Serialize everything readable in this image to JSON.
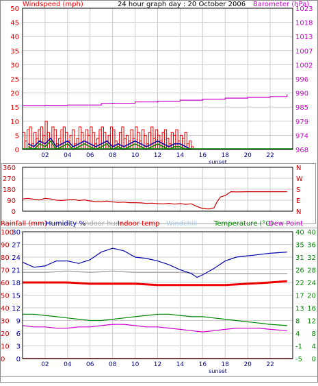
{
  "colors": {
    "wind": "#ee0000",
    "wind_avg": "#0000aa",
    "wind_gust": "#008800",
    "baro": "#cc00cc",
    "dir": "#cc0000",
    "grid": "#cccccc",
    "frame": "#000000",
    "rain": "#cc0000",
    "humidity": "#0000aa",
    "indoor_hum": "#aaaaaa",
    "indoor_temp": "#ee0000",
    "windchill": "#aaccee",
    "temperature": "#008800",
    "dewpoint": "#cc00cc"
  },
  "chart_data": [
    {
      "type": "line",
      "title": "24 hour graph day : 20 October 2006",
      "ylabel": "Windspeed (mph)",
      "y2label": "Barometer (hPa)",
      "x_ticks": [
        "02",
        "04",
        "06",
        "08",
        "10",
        "12",
        "14",
        "16",
        "18",
        "20",
        "22"
      ],
      "x_marker": "sunset",
      "sunset_hour": 17.35,
      "xlim": [
        0,
        24
      ],
      "ylim": [
        0,
        50
      ],
      "y_ticks": [
        0,
        5,
        10,
        15,
        20,
        25,
        30,
        35,
        40,
        45,
        50
      ],
      "y2_ticks": [
        968,
        974,
        979,
        985,
        990,
        996,
        1002,
        1007,
        1013,
        1018,
        1023
      ],
      "grid": true,
      "series": [
        {
          "name": "Windspeed",
          "key": "wind_gust_bars",
          "x": [
            0.1,
            0.3,
            0.5,
            0.7,
            0.9,
            1.1,
            1.3,
            1.5,
            1.7,
            1.9,
            2.1,
            2.3,
            2.5,
            2.7,
            2.9,
            3.1,
            3.3,
            3.5,
            3.7,
            3.9,
            4.1,
            4.3,
            4.5,
            4.7,
            4.9,
            5.1,
            5.3,
            5.5,
            5.7,
            5.9,
            6.1,
            6.3,
            6.5,
            6.7,
            6.9,
            7.1,
            7.3,
            7.5,
            7.7,
            7.9,
            8.1,
            8.3,
            8.5,
            8.7,
            8.9,
            9.1,
            9.3,
            9.5,
            9.7,
            9.9,
            10.1,
            10.3,
            10.5,
            10.7,
            10.9,
            11.1,
            11.3,
            11.5,
            11.7,
            11.9,
            12.1,
            12.3,
            12.5,
            12.7,
            12.9,
            13.1,
            13.3,
            13.5,
            13.7,
            13.9,
            14.1,
            14.3,
            14.5,
            14.7,
            14.9,
            15.1
          ],
          "values": [
            6,
            3,
            7,
            8,
            2,
            6,
            4,
            7,
            8,
            5,
            10,
            6,
            3,
            8,
            7,
            2,
            4,
            7,
            8,
            6,
            3,
            5,
            7,
            2,
            4,
            8,
            6,
            3,
            7,
            5,
            8,
            6,
            2,
            4,
            7,
            8,
            6,
            3,
            5,
            8,
            7,
            3,
            2,
            6,
            8,
            4,
            5,
            3,
            7,
            4,
            8,
            6,
            3,
            7,
            5,
            2,
            6,
            8,
            4,
            7,
            5,
            3,
            6,
            7,
            4,
            2,
            6,
            5,
            7,
            3,
            5,
            4,
            6,
            2,
            3,
            1
          ]
        },
        {
          "name": "Windspeed avg",
          "key": "wind_avg_line",
          "x": [
            0.5,
            1.0,
            1.5,
            2.0,
            2.5,
            3.0,
            3.5,
            4.0,
            4.5,
            5.0,
            5.5,
            6.0,
            6.5,
            7.0,
            7.5,
            8.0,
            8.5,
            9.0,
            9.5,
            10.0,
            10.5,
            11.0,
            11.5,
            12.0,
            12.5,
            13.0,
            13.5,
            14.0,
            14.5,
            15.0
          ],
          "values": [
            2,
            1,
            3,
            2,
            4,
            1,
            2,
            3,
            1,
            2,
            3,
            2,
            1,
            2,
            3,
            1,
            2,
            1,
            2,
            3,
            2,
            1,
            2,
            3,
            2,
            1,
            2,
            2,
            1,
            0
          ]
        },
        {
          "name": "Windspeed low",
          "key": "wind_low_line",
          "x": [
            0.5,
            1.0,
            1.5,
            2.0,
            2.5,
            3.0,
            3.5,
            4.0,
            4.5,
            5.0,
            5.5,
            6.0,
            6.5,
            7.0,
            7.5,
            8.0,
            8.5,
            9.0,
            9.5,
            10.0,
            10.5,
            11.0,
            11.5,
            12.0,
            12.5,
            13.0,
            13.5,
            14.0,
            14.5,
            15.0
          ],
          "values": [
            1,
            0,
            2,
            1,
            3,
            0,
            1,
            2,
            0,
            1,
            2,
            1,
            0,
            1,
            2,
            0,
            1,
            0,
            1,
            2,
            1,
            0,
            1,
            2,
            1,
            0,
            1,
            1,
            0,
            0
          ]
        },
        {
          "name": "Barometer",
          "key": "baro_line",
          "x": [
            0,
            2,
            4,
            6,
            7,
            8,
            10,
            12,
            14,
            16,
            18,
            20,
            22,
            23.5
          ],
          "values": [
            985.1,
            985.2,
            985.3,
            985.3,
            985.9,
            986.0,
            986.5,
            986.8,
            987.2,
            987.6,
            988.0,
            988.3,
            988.6,
            989.5
          ]
        }
      ]
    },
    {
      "type": "line",
      "ylim": [
        0,
        360
      ],
      "y_ticks": [
        0,
        90,
        180,
        270,
        360
      ],
      "y2_ticks": [
        "N",
        "E",
        "S",
        "W",
        "N"
      ],
      "series": [
        {
          "name": "Wind direction",
          "x": [
            0,
            0.5,
            1,
            1.5,
            2,
            2.5,
            3,
            3.5,
            4,
            4.5,
            5,
            5.5,
            6,
            6.5,
            7,
            7.5,
            8,
            8.5,
            9,
            9.5,
            10,
            10.5,
            11,
            11.5,
            12,
            12.5,
            13,
            13.5,
            14,
            14.5,
            15,
            15.5,
            16,
            16.5,
            17,
            17.3,
            17.6,
            18,
            18.5,
            19,
            20,
            21,
            22,
            23,
            23.5
          ],
          "values": [
            100,
            105,
            98,
            92,
            105,
            100,
            90,
            88,
            92,
            96,
            88,
            92,
            84,
            78,
            78,
            82,
            76,
            72,
            74,
            70,
            70,
            68,
            64,
            66,
            62,
            60,
            64,
            58,
            62,
            56,
            60,
            38,
            22,
            18,
            26,
            80,
            118,
            128,
            160,
            158,
            160,
            160,
            160,
            160,
            160
          ]
        }
      ]
    },
    {
      "type": "line",
      "legend": [
        "Rainfall (mm)",
        "Humidity %",
        "Indoor hum",
        "Indoor temp",
        "Windchill",
        "Temperature (°C)",
        "Dew Point"
      ],
      "left_ticks_rain": [
        0,
        10,
        20,
        30,
        40,
        50,
        60,
        70,
        80,
        90,
        100
      ],
      "left_ticks_hum": [
        0,
        3,
        6,
        9,
        12,
        15,
        18,
        21,
        24,
        27,
        30
      ],
      "right_ticks_c": [
        -5,
        -1,
        4,
        8,
        13,
        17,
        22,
        26,
        31,
        35,
        40
      ],
      "right_ticks_c2": [
        0,
        4,
        8,
        12,
        16,
        20,
        24,
        28,
        32,
        36,
        40
      ],
      "ylim": [
        0,
        100
      ],
      "series": [
        {
          "name": "Humidity",
          "x": [
            0,
            0.5,
            1,
            2,
            3,
            4,
            5,
            6,
            7,
            8,
            9,
            10,
            11,
            12,
            13,
            14,
            15,
            15.5,
            16,
            17,
            18,
            19,
            20,
            21,
            22,
            23.5
          ],
          "values": [
            76,
            74,
            72,
            73,
            77,
            77,
            75,
            78,
            84,
            87,
            85,
            80,
            79,
            77,
            74,
            70,
            67,
            64,
            66,
            71,
            77,
            80,
            81,
            82,
            83,
            84
          ]
        },
        {
          "name": "Indoor hum",
          "x": [
            0,
            2,
            4,
            6,
            8,
            10,
            12,
            14,
            16,
            18,
            20,
            22,
            23.5
          ],
          "values": [
            68,
            68,
            69,
            68,
            69,
            68,
            68,
            68,
            67,
            67,
            67,
            67,
            67
          ]
        },
        {
          "name": "Indoor temp",
          "x": [
            0,
            2,
            4,
            6,
            8,
            10,
            12,
            14,
            16,
            18,
            20,
            22,
            23.5
          ],
          "values": [
            60,
            60,
            60,
            59,
            59,
            59,
            58,
            58,
            58,
            58,
            59,
            60,
            61
          ]
        },
        {
          "name": "Temperature",
          "x": [
            0,
            1,
            2,
            3,
            4,
            5,
            6,
            7,
            8,
            9,
            10,
            11,
            12,
            13,
            14,
            15,
            16,
            17,
            18,
            19,
            20,
            21,
            22,
            23.5
          ],
          "values": [
            35,
            35,
            34,
            33,
            32,
            31,
            30,
            30,
            31,
            32,
            33,
            34,
            35,
            35,
            34,
            33,
            33,
            32,
            31,
            30,
            29,
            28,
            27,
            26
          ]
        },
        {
          "name": "Dew Point",
          "x": [
            0,
            1,
            2,
            3,
            4,
            5,
            6,
            7,
            8,
            9,
            10,
            11,
            12,
            13,
            14,
            15,
            16,
            17,
            18,
            19,
            20,
            21,
            22,
            23.5
          ],
          "values": [
            26,
            25,
            25,
            24,
            24,
            25,
            25,
            26,
            27,
            27,
            26,
            25,
            25,
            24,
            23,
            22,
            21,
            22,
            23,
            24,
            24,
            24,
            23,
            22
          ]
        },
        {
          "name": "Rainfall",
          "x": [
            0,
            24
          ],
          "values": [
            0,
            0
          ]
        }
      ]
    }
  ]
}
